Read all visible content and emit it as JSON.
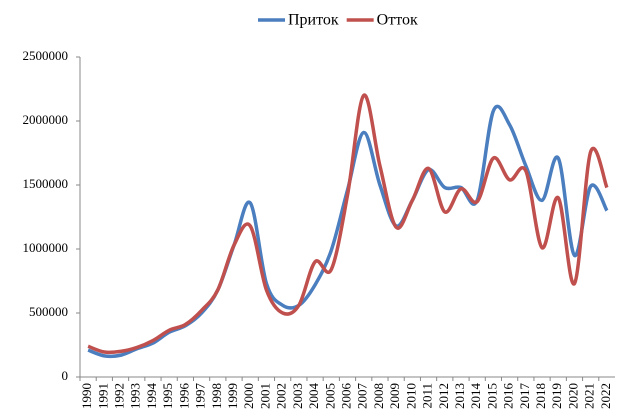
{
  "chart_data": {
    "type": "line",
    "categories": [
      "1990",
      "1991",
      "1992",
      "1993",
      "1994",
      "1995",
      "1996",
      "1997",
      "1998",
      "1999",
      "2000",
      "2001",
      "2002",
      "2003",
      "2004",
      "2005",
      "2006",
      "2007",
      "2008",
      "2009",
      "2010",
      "2011",
      "2012",
      "2013",
      "2014",
      "2015",
      "2016",
      "2017",
      "2018",
      "2019",
      "2020",
      "2021",
      "2022"
    ],
    "series": [
      {
        "name": "Приток",
        "color": "#4a7ebf",
        "values": [
          210000,
          165000,
          170000,
          220000,
          265000,
          350000,
          400000,
          500000,
          680000,
          1030000,
          1360000,
          730000,
          560000,
          560000,
          720000,
          990000,
          1460000,
          1910000,
          1500000,
          1180000,
          1380000,
          1620000,
          1480000,
          1480000,
          1380000,
          2080000,
          1970000,
          1650000,
          1380000,
          1710000,
          950000,
          1490000,
          1300000
        ]
      },
      {
        "name": "Отток",
        "color": "#c0504d",
        "values": [
          240000,
          195000,
          200000,
          230000,
          285000,
          365000,
          410000,
          520000,
          680000,
          1030000,
          1180000,
          680000,
          500000,
          560000,
          900000,
          840000,
          1420000,
          2200000,
          1650000,
          1170000,
          1380000,
          1630000,
          1290000,
          1470000,
          1370000,
          1710000,
          1540000,
          1610000,
          1010000,
          1400000,
          730000,
          1760000,
          1480000
        ]
      }
    ],
    "ylim": [
      0,
      2500000
    ],
    "yticks": [
      0,
      500000,
      1000000,
      1500000,
      2000000,
      2500000
    ],
    "grid": false,
    "legend": "top"
  }
}
